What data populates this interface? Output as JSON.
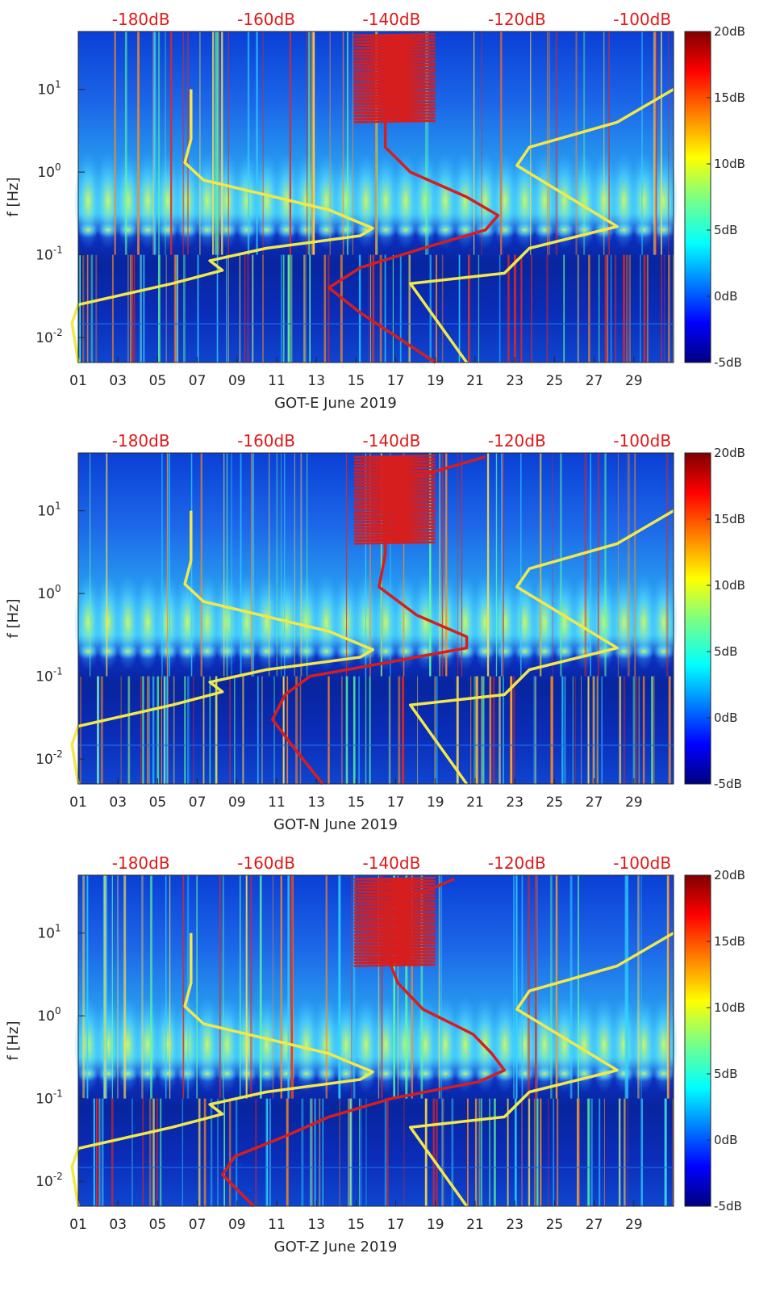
{
  "chart_data": [
    {
      "type": "heatmap",
      "title": "GOT-E June 2019",
      "xlabel": "GOT-E June 2019",
      "ylabel": "f [Hz]",
      "x_ticks": [
        "01",
        "03",
        "05",
        "07",
        "09",
        "11",
        "13",
        "15",
        "17",
        "19",
        "21",
        "23",
        "25",
        "27",
        "29"
      ],
      "x_range_days": [
        1,
        31
      ],
      "y_ticks": [
        "10-2",
        "10-1",
        "100",
        "101"
      ],
      "y_range_hz": [
        0.005,
        50
      ],
      "y_scale": "log",
      "top_axis_labels": [
        "-180dB",
        "-160dB",
        "-140dB",
        "-120dB",
        "-100dB"
      ],
      "top_axis_range_db": [
        -190,
        -95
      ],
      "colorbar_labels": [
        "20dB",
        "15dB",
        "10dB",
        "5dB",
        "0dB",
        "-5dB"
      ],
      "colorbar_range_db": [
        -5,
        20
      ],
      "series": [
        {
          "name": "yellow noise model (low)",
          "color": "#f2e84b",
          "points": [
            [
              -190,
              0.005
            ],
            [
              -191,
              0.015
            ],
            [
              -190,
              0.025
            ],
            [
              -175,
              0.045
            ],
            [
              -167,
              0.065
            ],
            [
              -169,
              0.085
            ],
            [
              -160,
              0.12
            ],
            [
              -145,
              0.17
            ],
            [
              -143,
              0.21
            ],
            [
              -150,
              0.35
            ],
            [
              -170,
              0.8
            ],
            [
              -173,
              1.3
            ],
            [
              -172,
              2.5
            ],
            [
              -172,
              5
            ],
            [
              -172,
              10
            ]
          ]
        },
        {
          "name": "yellow noise model (high)",
          "color": "#f2e84b",
          "points": [
            [
              -128,
              0.005
            ],
            [
              -137,
              0.045
            ],
            [
              -122,
              0.06
            ],
            [
              -118,
              0.12
            ],
            [
              -104,
              0.22
            ],
            [
              -120,
              1.2
            ],
            [
              -118,
              2
            ],
            [
              -104,
              4
            ],
            [
              -95,
              10
            ]
          ]
        },
        {
          "name": "red measured level",
          "color": "#d61e1e",
          "points": [
            [
              -133,
              0.005
            ],
            [
              -145,
              0.02
            ],
            [
              -150,
              0.04
            ],
            [
              -145,
              0.07
            ],
            [
              -135,
              0.12
            ],
            [
              -125,
              0.2
            ],
            [
              -123,
              0.3
            ],
            [
              -128,
              0.5
            ],
            [
              -137,
              1
            ],
            [
              -141,
              2
            ],
            [
              -141,
              4
            ],
            [
              -141,
              8
            ],
            [
              -141,
              20
            ],
            [
              -135,
              45
            ]
          ],
          "notes": "red curve shows rapid oscillation between 4 and 45 Hz"
        }
      ]
    },
    {
      "type": "heatmap",
      "title": "GOT-N June 2019",
      "xlabel": "GOT-N June 2019",
      "ylabel": "f [Hz]",
      "x_ticks": [
        "01",
        "03",
        "05",
        "07",
        "09",
        "11",
        "13",
        "15",
        "17",
        "19",
        "21",
        "23",
        "25",
        "27",
        "29"
      ],
      "x_range_days": [
        1,
        31
      ],
      "y_ticks": [
        "10-2",
        "10-1",
        "100",
        "101"
      ],
      "y_range_hz": [
        0.005,
        50
      ],
      "y_scale": "log",
      "top_axis_labels": [
        "-180dB",
        "-160dB",
        "-140dB",
        "-120dB",
        "-100dB"
      ],
      "top_axis_range_db": [
        -190,
        -95
      ],
      "colorbar_labels": [
        "20dB",
        "15dB",
        "10dB",
        "5dB",
        "0dB",
        "-5dB"
      ],
      "colorbar_range_db": [
        -5,
        20
      ],
      "series": [
        {
          "name": "yellow noise model (low)",
          "color": "#f2e84b",
          "points": [
            [
              -190,
              0.005
            ],
            [
              -191,
              0.015
            ],
            [
              -190,
              0.025
            ],
            [
              -175,
              0.045
            ],
            [
              -167,
              0.065
            ],
            [
              -169,
              0.085
            ],
            [
              -160,
              0.12
            ],
            [
              -145,
              0.17
            ],
            [
              -143,
              0.21
            ],
            [
              -150,
              0.35
            ],
            [
              -170,
              0.8
            ],
            [
              -173,
              1.3
            ],
            [
              -172,
              2.5
            ],
            [
              -172,
              5
            ],
            [
              -172,
              10
            ]
          ]
        },
        {
          "name": "yellow noise model (high)",
          "color": "#f2e84b",
          "points": [
            [
              -128,
              0.005
            ],
            [
              -137,
              0.045
            ],
            [
              -122,
              0.06
            ],
            [
              -118,
              0.12
            ],
            [
              -104,
              0.22
            ],
            [
              -120,
              1.2
            ],
            [
              -118,
              2
            ],
            [
              -104,
              4
            ],
            [
              -95,
              10
            ]
          ]
        },
        {
          "name": "red measured level",
          "color": "#d61e1e",
          "points": [
            [
              -151,
              0.005
            ],
            [
              -156,
              0.015
            ],
            [
              -159,
              0.03
            ],
            [
              -157,
              0.06
            ],
            [
              -153,
              0.1
            ],
            [
              -140,
              0.15
            ],
            [
              -128,
              0.22
            ],
            [
              -128,
              0.3
            ],
            [
              -136,
              0.55
            ],
            [
              -142,
              1.2
            ],
            [
              -141,
              3
            ],
            [
              -141,
              6
            ],
            [
              -141,
              20
            ],
            [
              -125,
              45
            ]
          ],
          "notes": "red curve shows rapid oscillation between 3 and 45 Hz"
        }
      ]
    },
    {
      "type": "heatmap",
      "title": "GOT-Z June 2019",
      "xlabel": "GOT-Z June 2019",
      "ylabel": "f [Hz]",
      "x_ticks": [
        "01",
        "03",
        "05",
        "07",
        "09",
        "11",
        "13",
        "15",
        "17",
        "19",
        "21",
        "23",
        "25",
        "27",
        "29"
      ],
      "x_range_days": [
        1,
        31
      ],
      "y_ticks": [
        "10-2",
        "10-1",
        "100",
        "101"
      ],
      "y_range_hz": [
        0.005,
        50
      ],
      "y_scale": "log",
      "top_axis_labels": [
        "-180dB",
        "-160dB",
        "-140dB",
        "-120dB",
        "-100dB"
      ],
      "top_axis_range_db": [
        -190,
        -95
      ],
      "colorbar_labels": [
        "20dB",
        "15dB",
        "10dB",
        "5dB",
        "0dB",
        "-5dB"
      ],
      "colorbar_range_db": [
        -5,
        20
      ],
      "series": [
        {
          "name": "yellow noise model (low)",
          "color": "#f2e84b",
          "points": [
            [
              -190,
              0.005
            ],
            [
              -191,
              0.015
            ],
            [
              -190,
              0.025
            ],
            [
              -175,
              0.045
            ],
            [
              -167,
              0.065
            ],
            [
              -169,
              0.085
            ],
            [
              -160,
              0.12
            ],
            [
              -145,
              0.17
            ],
            [
              -143,
              0.21
            ],
            [
              -150,
              0.35
            ],
            [
              -170,
              0.8
            ],
            [
              -173,
              1.3
            ],
            [
              -172,
              2.5
            ],
            [
              -172,
              5
            ],
            [
              -172,
              10
            ]
          ]
        },
        {
          "name": "yellow noise model (high)",
          "color": "#f2e84b",
          "points": [
            [
              -128,
              0.005
            ],
            [
              -137,
              0.045
            ],
            [
              -122,
              0.06
            ],
            [
              -118,
              0.12
            ],
            [
              -104,
              0.22
            ],
            [
              -120,
              1.2
            ],
            [
              -118,
              2
            ],
            [
              -104,
              4
            ],
            [
              -95,
              10
            ]
          ]
        },
        {
          "name": "red measured level",
          "color": "#d61e1e",
          "points": [
            [
              -162,
              0.005
            ],
            [
              -167,
              0.012
            ],
            [
              -165,
              0.02
            ],
            [
              -157,
              0.035
            ],
            [
              -150,
              0.06
            ],
            [
              -140,
              0.1
            ],
            [
              -126,
              0.16
            ],
            [
              -122,
              0.22
            ],
            [
              -124,
              0.35
            ],
            [
              -127,
              0.6
            ],
            [
              -135,
              1.2
            ],
            [
              -139,
              2.5
            ],
            [
              -141,
              6
            ],
            [
              -141,
              20
            ],
            [
              -130,
              45
            ]
          ],
          "notes": "red curve shows rapid oscillation between 4 and 45 Hz"
        }
      ]
    }
  ]
}
